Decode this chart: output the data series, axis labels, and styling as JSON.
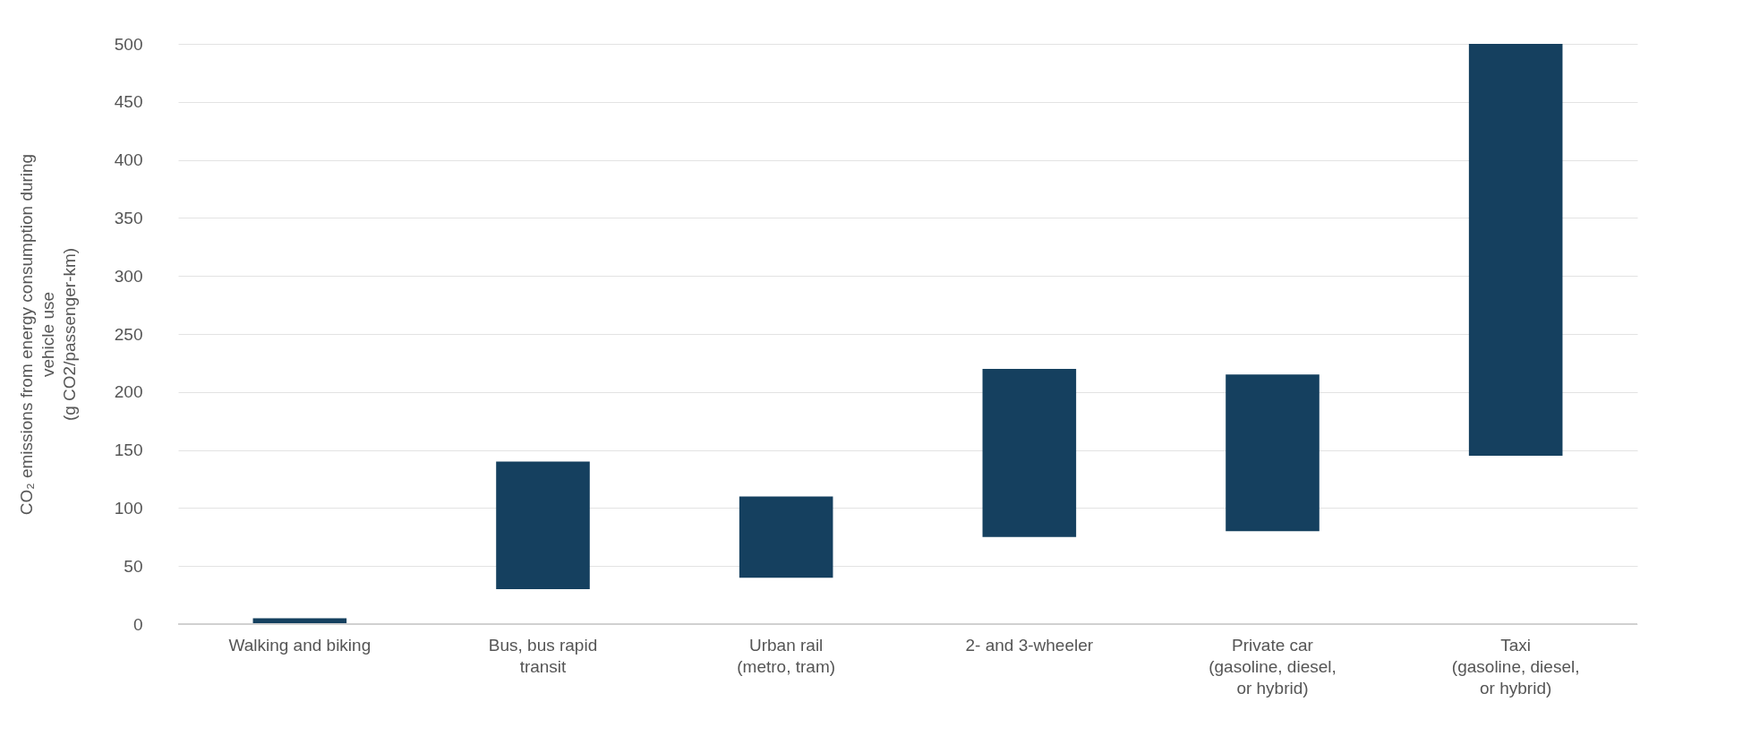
{
  "chart_data": {
    "type": "bar",
    "ylabel": "CO₂ emissions from energy consumption during vehicle use (g CO2/passenger-km)",
    "categories": [
      "Walking and biking",
      "Bus, bus rapid transit",
      "Urban rail (metro, tram)",
      "2- and 3-wheeler",
      "Private car (gasoline, diesel, or hybrid)",
      "Taxi (gasoline, diesel, or hybrid)"
    ],
    "base": [
      0,
      30,
      40,
      75,
      80,
      145
    ],
    "values": [
      5,
      110,
      70,
      145,
      135,
      355
    ],
    "color": "#15405f",
    "ylim": [
      0,
      500
    ],
    "yticks": [
      0,
      50,
      100,
      150,
      200,
      250,
      300,
      350,
      400,
      450,
      500
    ],
    "grid": "y"
  }
}
